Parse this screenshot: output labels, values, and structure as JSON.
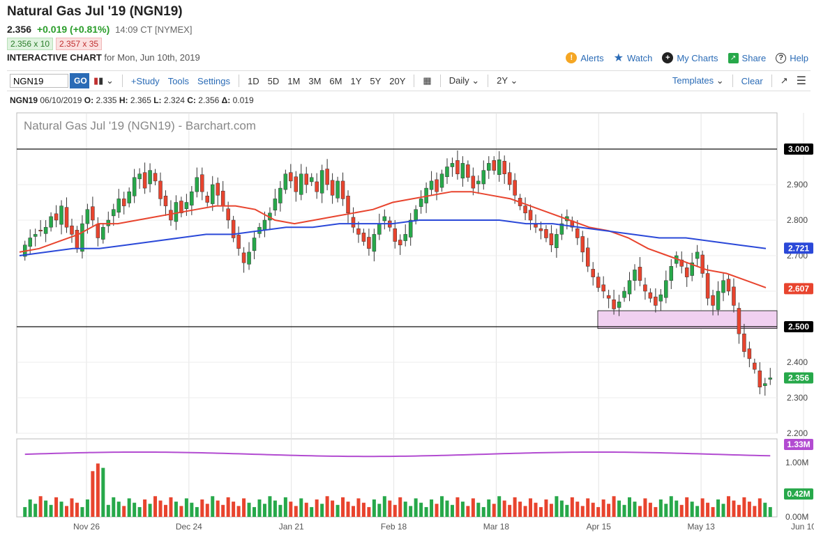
{
  "header": {
    "title": "Natural Gas Jul '19 (NGN19)",
    "last": "2.356",
    "change": "+0.019 (+0.81%)",
    "time": "14:09 CT [NYMEX]",
    "bid": "2.356 x 10",
    "ask": "2.357 x 35",
    "chart_type_label": "INTERACTIVE CHART",
    "for_date": "for Mon, Jun 10th, 2019"
  },
  "actions": {
    "alerts": "Alerts",
    "watch": "Watch",
    "mycharts": "My Charts",
    "share": "Share",
    "help": "Help"
  },
  "toolbar": {
    "symbol": "NGN19",
    "go": "GO",
    "study": "+Study",
    "tools": "Tools",
    "settings": "Settings",
    "ranges": [
      "1D",
      "5D",
      "1M",
      "3M",
      "6M",
      "1Y",
      "5Y",
      "20Y"
    ],
    "interval": "Daily",
    "period": "2Y",
    "templates": "Templates",
    "clear": "Clear"
  },
  "ohlc": {
    "symbol": "NGN19",
    "date": "06/10/2019",
    "o_label": "O:",
    "o": "2.335",
    "h_label": "H:",
    "h": "2.365",
    "l_label": "L:",
    "l": "2.324",
    "c_label": "C:",
    "c": "2.356",
    "d_label": "Δ:",
    "d": "0.019"
  },
  "colors": {
    "up": "#27a84a",
    "down": "#e8442e",
    "ma_red": "#e8442e",
    "ma_blue": "#2a48d8",
    "vol_line": "#b24bd1",
    "zone": "#f0d0f0",
    "link": "#2a6bb6"
  },
  "chart_data": {
    "type": "candlestick",
    "title": "Natural Gas Jul '19 (NGN19) - Barchart.com",
    "y_ticks": [
      "3.000",
      "2.900",
      "2.800",
      "2.700",
      "2.600",
      "2.500",
      "2.400",
      "2.300",
      "2.200"
    ],
    "ylim": [
      2.2,
      3.0
    ],
    "x_ticks": [
      "Nov 26",
      "Dec 24",
      "Jan 21",
      "Feb 18",
      "Mar 18",
      "Apr 15",
      "May 13",
      "Jun 10"
    ],
    "horizontal_lines": [
      3.0,
      2.5
    ],
    "support_zone": [
      2.495,
      2.545
    ],
    "price_labels": [
      {
        "text": "3.000",
        "value": 3.0,
        "color": "#000000"
      },
      {
        "text": "2.721",
        "value": 2.721,
        "color": "#2a48d8"
      },
      {
        "text": "2.607",
        "value": 2.607,
        "color": "#e8442e"
      },
      {
        "text": "2.500",
        "value": 2.5,
        "color": "#000000"
      },
      {
        "text": "2.356",
        "value": 2.356,
        "color": "#27a84a"
      }
    ],
    "closes": [
      2.73,
      2.75,
      2.76,
      2.77,
      2.78,
      2.81,
      2.8,
      2.84,
      2.78,
      2.76,
      2.72,
      2.79,
      2.83,
      2.8,
      2.75,
      2.78,
      2.8,
      2.83,
      2.86,
      2.84,
      2.88,
      2.92,
      2.93,
      2.89,
      2.94,
      2.91,
      2.86,
      2.84,
      2.8,
      2.85,
      2.82,
      2.85,
      2.88,
      2.92,
      2.88,
      2.85,
      2.9,
      2.87,
      2.84,
      2.8,
      2.75,
      2.72,
      2.68,
      2.71,
      2.75,
      2.78,
      2.8,
      2.82,
      2.86,
      2.89,
      2.93,
      2.91,
      2.88,
      2.93,
      2.9,
      2.92,
      2.88,
      2.94,
      2.9,
      2.87,
      2.91,
      2.86,
      2.82,
      2.78,
      2.76,
      2.74,
      2.72,
      2.76,
      2.79,
      2.81,
      2.78,
      2.74,
      2.73,
      2.76,
      2.8,
      2.83,
      2.86,
      2.89,
      2.91,
      2.88,
      2.93,
      2.95,
      2.96,
      2.93,
      2.96,
      2.92,
      2.89,
      2.91,
      2.94,
      2.96,
      2.94,
      2.97,
      2.93,
      2.9,
      2.87,
      2.84,
      2.82,
      2.8,
      2.78,
      2.77,
      2.75,
      2.73,
      2.76,
      2.79,
      2.81,
      2.78,
      2.75,
      2.71,
      2.67,
      2.64,
      2.61,
      2.6,
      2.58,
      2.55,
      2.57,
      2.6,
      2.63,
      2.66,
      2.63,
      2.6,
      2.58,
      2.56,
      2.59,
      2.63,
      2.67,
      2.7,
      2.67,
      2.64,
      2.68,
      2.71,
      2.65,
      2.58,
      2.56,
      2.6,
      2.63,
      2.6,
      2.56,
      2.48,
      2.43,
      2.41,
      2.38,
      2.33,
      2.34,
      2.356
    ],
    "ma_red": [
      2.71,
      2.72,
      2.74,
      2.76,
      2.79,
      2.79,
      2.8,
      2.81,
      2.82,
      2.83,
      2.84,
      2.84,
      2.83,
      2.8,
      2.79,
      2.8,
      2.81,
      2.82,
      2.83,
      2.85,
      2.86,
      2.87,
      2.88,
      2.88,
      2.87,
      2.86,
      2.84,
      2.82,
      2.8,
      2.78,
      2.77,
      2.75,
      2.72,
      2.7,
      2.68,
      2.66,
      2.65,
      2.63,
      2.61
    ],
    "ma_blue": [
      2.7,
      2.71,
      2.72,
      2.72,
      2.73,
      2.74,
      2.75,
      2.76,
      2.76,
      2.77,
      2.78,
      2.78,
      2.79,
      2.79,
      2.79,
      2.8,
      2.8,
      2.8,
      2.8,
      2.79,
      2.79,
      2.78,
      2.77,
      2.76,
      2.75,
      2.75,
      2.74,
      2.73,
      2.72
    ],
    "volume_labels": [
      "1.33M",
      "1.00M",
      "0.42M",
      "0.00M"
    ],
    "volume_ylim": [
      0,
      1.33
    ],
    "volume_avg_label": "1.33M",
    "volume_last_label": "0.42M"
  }
}
